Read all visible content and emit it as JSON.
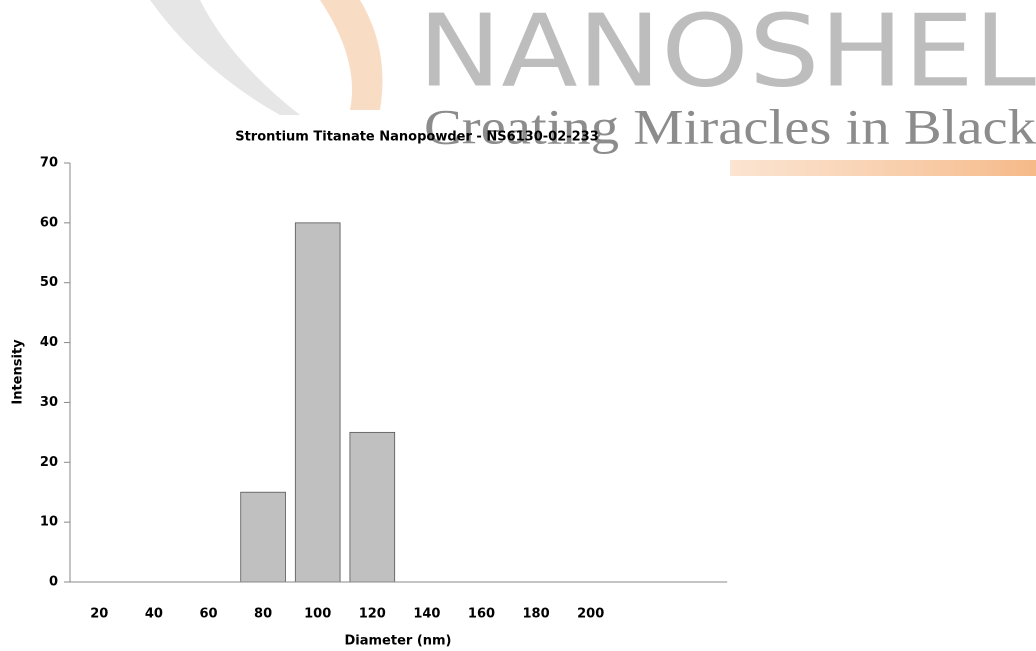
{
  "logo": {
    "name": "NANOSHEL",
    "tagline": "Creating Miracles in Black"
  },
  "chart_data": {
    "type": "bar",
    "title": "Strontium Titanate Nanopowder - NS6130-02-233",
    "xlabel": "Diameter (nm)",
    "ylabel": "Intensity",
    "categories": [
      "20",
      "40",
      "60",
      "80",
      "100",
      "120",
      "140",
      "160",
      "180",
      "200",
      null,
      null
    ],
    "values": [
      0,
      0,
      0,
      15,
      60,
      25,
      0,
      0,
      0,
      0,
      0,
      0
    ],
    "color": "#c0c0c0",
    "ylim": [
      0,
      70
    ],
    "yticks": [
      0,
      10,
      20,
      30,
      40,
      50,
      60,
      70
    ],
    "grid": false
  }
}
